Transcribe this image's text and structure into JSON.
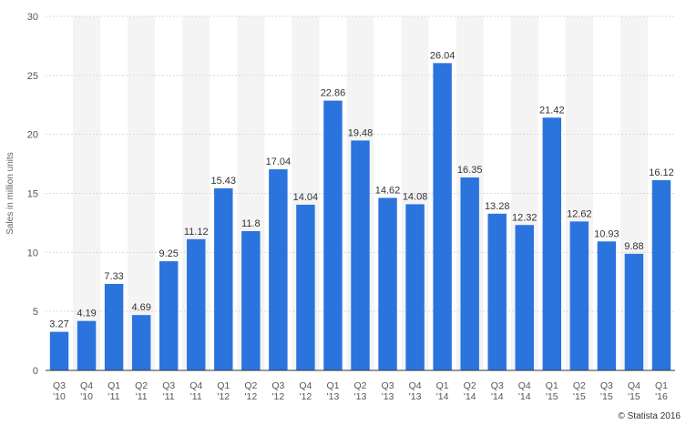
{
  "chart_data": {
    "type": "bar",
    "categories": [
      [
        "Q3",
        "'10"
      ],
      [
        "Q4",
        "'10"
      ],
      [
        "Q1",
        "'11"
      ],
      [
        "Q2",
        "'11"
      ],
      [
        "Q3",
        "'11"
      ],
      [
        "Q4",
        "'11"
      ],
      [
        "Q1",
        "'12"
      ],
      [
        "Q2",
        "'12"
      ],
      [
        "Q3",
        "'12"
      ],
      [
        "Q4",
        "'12"
      ],
      [
        "Q1",
        "'13"
      ],
      [
        "Q2",
        "'13"
      ],
      [
        "Q3",
        "'13"
      ],
      [
        "Q4",
        "'13"
      ],
      [
        "Q1",
        "'14"
      ],
      [
        "Q2",
        "'14"
      ],
      [
        "Q3",
        "'14"
      ],
      [
        "Q4",
        "'14"
      ],
      [
        "Q1",
        "'15"
      ],
      [
        "Q2",
        "'15"
      ],
      [
        "Q3",
        "'15"
      ],
      [
        "Q4",
        "'15"
      ],
      [
        "Q1",
        "'16"
      ]
    ],
    "values": [
      3.27,
      4.19,
      7.33,
      4.69,
      9.25,
      11.12,
      15.43,
      11.8,
      17.04,
      14.04,
      22.86,
      19.48,
      14.62,
      14.08,
      26.04,
      16.35,
      13.28,
      12.32,
      21.42,
      12.62,
      10.93,
      9.88,
      16.12
    ],
    "value_labels": [
      "3.27",
      "4.19",
      "7.33",
      "4.69",
      "9.25",
      "11.12",
      "15.43",
      "11.8",
      "17.04",
      "14.04",
      "22.86",
      "19.48",
      "14.62",
      "14.08",
      "26.04",
      "16.35",
      "13.28",
      "12.32",
      "21.42",
      "12.62",
      "10.93",
      "9.88",
      "16.12"
    ],
    "ylabel": "Sales in million units",
    "ylim": [
      0,
      30
    ],
    "yticks": [
      0,
      5,
      10,
      15,
      20,
      25,
      30
    ],
    "grid": true,
    "colors": {
      "bar": "#2B74DD",
      "band": "#F4F4F4",
      "grid": "#D9D9D9",
      "axis": "#333333"
    }
  },
  "credit": "© Statista 2016"
}
